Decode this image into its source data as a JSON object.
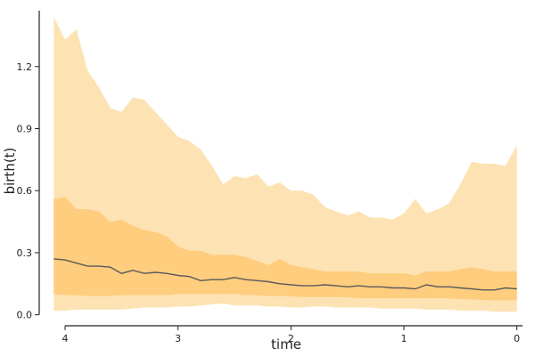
{
  "chart_data": {
    "type": "area",
    "xlabel": "time",
    "ylabel": "birth(t)",
    "xlim": [
      4.15,
      -0.05
    ],
    "ylim": [
      -0.01,
      1.47
    ],
    "x_reversed": true,
    "xticks": [
      4,
      3,
      2,
      1,
      0
    ],
    "xtick_labels": [
      "4",
      "3",
      "2",
      "1",
      "0"
    ],
    "yticks": [
      0.0,
      0.3,
      0.6,
      0.9,
      1.2
    ],
    "ytick_labels": [
      "0.0",
      "0.3",
      "0.6",
      "0.9",
      "1.2"
    ],
    "grid": false,
    "x": [
      4.1,
      4.0,
      3.9,
      3.8,
      3.7,
      3.6,
      3.5,
      3.4,
      3.3,
      3.2,
      3.1,
      3.0,
      2.9,
      2.8,
      2.7,
      2.6,
      2.5,
      2.4,
      2.3,
      2.2,
      2.1,
      2.0,
      1.9,
      1.8,
      1.7,
      1.6,
      1.5,
      1.4,
      1.3,
      1.2,
      1.1,
      1.0,
      0.9,
      0.8,
      0.7,
      0.6,
      0.5,
      0.4,
      0.3,
      0.2,
      0.1,
      0.0
    ],
    "series": [
      {
        "type": "band",
        "color": "#fde3b3",
        "lower": [
          0.02,
          0.02,
          0.025,
          0.025,
          0.025,
          0.025,
          0.025,
          0.03,
          0.035,
          0.035,
          0.035,
          0.04,
          0.04,
          0.045,
          0.05,
          0.055,
          0.045,
          0.045,
          0.045,
          0.04,
          0.04,
          0.035,
          0.035,
          0.04,
          0.04,
          0.035,
          0.035,
          0.035,
          0.035,
          0.03,
          0.03,
          0.03,
          0.03,
          0.025,
          0.025,
          0.025,
          0.02,
          0.02,
          0.02,
          0.015,
          0.015,
          0.015
        ],
        "upper": [
          1.44,
          1.33,
          1.38,
          1.18,
          1.1,
          1.0,
          0.98,
          1.05,
          1.04,
          0.98,
          0.92,
          0.86,
          0.84,
          0.8,
          0.72,
          0.63,
          0.67,
          0.66,
          0.68,
          0.62,
          0.64,
          0.6,
          0.6,
          0.58,
          0.52,
          0.5,
          0.48,
          0.5,
          0.47,
          0.47,
          0.46,
          0.49,
          0.56,
          0.49,
          0.51,
          0.54,
          0.63,
          0.74,
          0.73,
          0.73,
          0.72,
          0.82
        ]
      },
      {
        "type": "band",
        "color": "#fecd7e",
        "lower": [
          0.1,
          0.095,
          0.095,
          0.09,
          0.09,
          0.09,
          0.095,
          0.095,
          0.095,
          0.095,
          0.095,
          0.1,
          0.1,
          0.1,
          0.1,
          0.1,
          0.1,
          0.095,
          0.095,
          0.09,
          0.09,
          0.09,
          0.085,
          0.085,
          0.085,
          0.085,
          0.085,
          0.08,
          0.08,
          0.08,
          0.08,
          0.08,
          0.08,
          0.08,
          0.08,
          0.08,
          0.075,
          0.075,
          0.07,
          0.07,
          0.07,
          0.07
        ],
        "upper": [
          0.56,
          0.57,
          0.51,
          0.51,
          0.5,
          0.45,
          0.46,
          0.43,
          0.41,
          0.4,
          0.38,
          0.33,
          0.31,
          0.31,
          0.29,
          0.29,
          0.29,
          0.28,
          0.26,
          0.24,
          0.27,
          0.24,
          0.23,
          0.22,
          0.21,
          0.21,
          0.21,
          0.21,
          0.2,
          0.2,
          0.2,
          0.2,
          0.19,
          0.21,
          0.21,
          0.21,
          0.22,
          0.23,
          0.22,
          0.21,
          0.21,
          0.21
        ]
      },
      {
        "type": "line",
        "color": "#5a5a5a",
        "values": [
          0.27,
          0.265,
          0.25,
          0.235,
          0.235,
          0.23,
          0.2,
          0.215,
          0.2,
          0.205,
          0.2,
          0.19,
          0.185,
          0.165,
          0.17,
          0.17,
          0.18,
          0.17,
          0.165,
          0.16,
          0.15,
          0.145,
          0.14,
          0.14,
          0.145,
          0.14,
          0.135,
          0.14,
          0.135,
          0.135,
          0.13,
          0.13,
          0.125,
          0.145,
          0.135,
          0.135,
          0.13,
          0.125,
          0.12,
          0.12,
          0.13,
          0.125
        ]
      }
    ]
  }
}
